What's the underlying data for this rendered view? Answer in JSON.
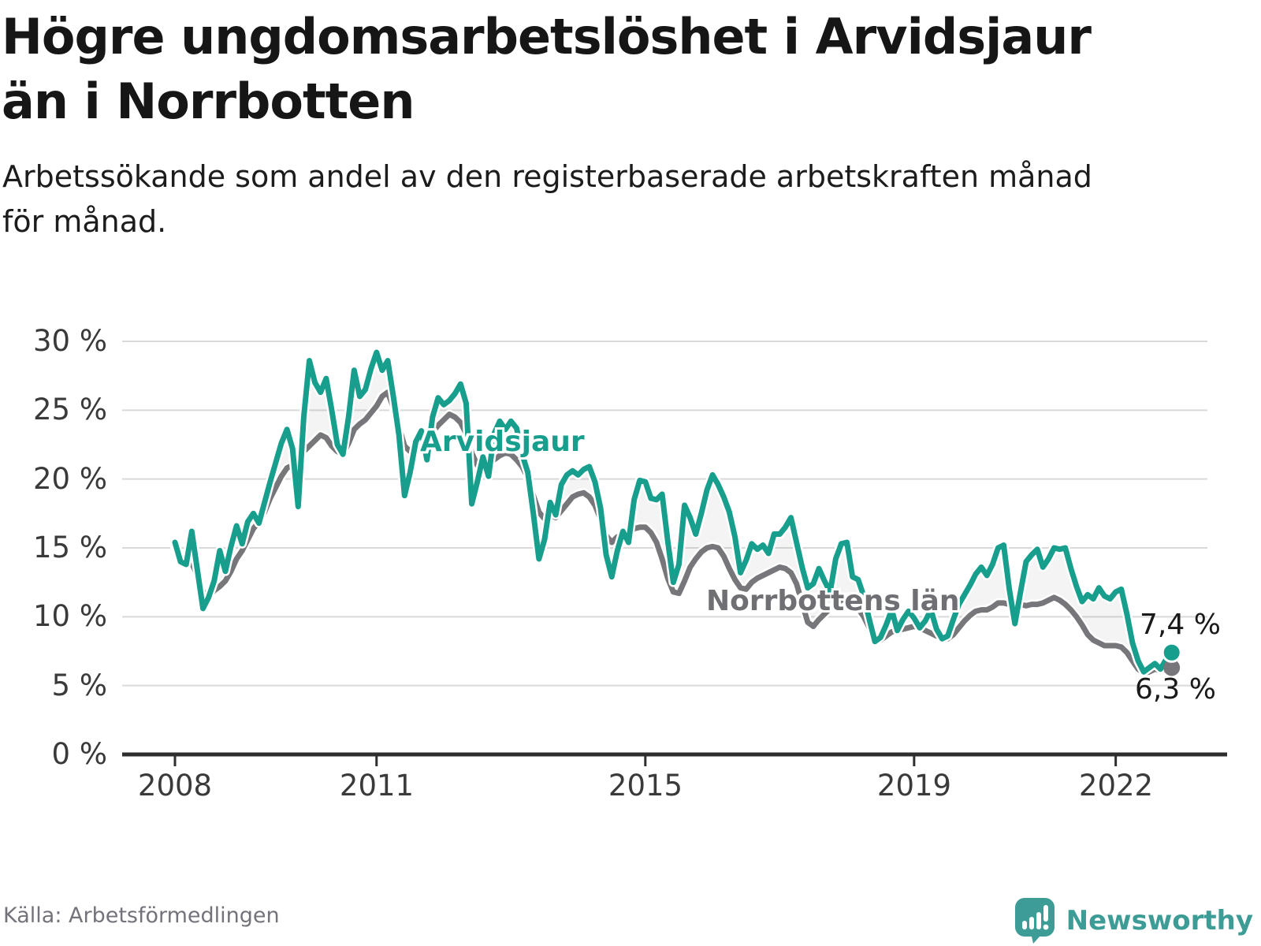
{
  "header": {
    "title_lines": [
      "Högre ungdomsarbetslöshet i Arvidsjaur",
      "än i Norrbotten"
    ],
    "subtitle_lines": [
      "Arbetssökande som andel av den registerbaserade arbetskraften månad",
      "för månad."
    ]
  },
  "footer": {
    "source": "Källa: Arbetsförmedlingen",
    "logo_text": "Newsworthy",
    "logo_color": "#3d9c95"
  },
  "chart_data": {
    "type": "line",
    "title": "Högre ungdomsarbetslöshet i Arvidsjaur än i Norrbotten",
    "subtitle": "Arbetssökande som andel av den registerbaserade arbetskraften månad för månad.",
    "unit": "%",
    "frequency": "monthly",
    "x_range": [
      "2008-01",
      "2022-11"
    ],
    "ylim": [
      0,
      30
    ],
    "grid": "horizontal",
    "legend_position": "inline-labels",
    "ytick_labels": [
      "30 %",
      "25 %",
      "20 %",
      "15 %",
      "10 %",
      "5 %",
      "0 %"
    ],
    "ytick_values": [
      30,
      25,
      20,
      15,
      10,
      5,
      0
    ],
    "xtick_labels": [
      "2008",
      "2011",
      "2015",
      "2019",
      "2022"
    ],
    "colors": {
      "arvidsjaur": "#179e8d",
      "norrbotten": "#77767b",
      "fill_between": "rgba(120,120,120,0.08)",
      "gridline": "#d9d9d9",
      "axis": "#2e2e2e"
    },
    "series": [
      {
        "name": "Arvidsjaur",
        "color": "#179e8d",
        "end_label": "7,4 %",
        "end_value": 7.4,
        "values": [
          15.4,
          14.0,
          13.8,
          16.2,
          13.4,
          10.6,
          11.4,
          12.6,
          14.8,
          13.3,
          15.1,
          16.6,
          15.3,
          16.9,
          17.5,
          16.8,
          18.3,
          19.8,
          21.2,
          22.6,
          23.6,
          22.2,
          18.0,
          24.5,
          28.6,
          27.0,
          26.3,
          27.3,
          25.0,
          22.5,
          21.8,
          24.5,
          27.9,
          26.0,
          26.5,
          28.0,
          29.2,
          27.9,
          28.6,
          26.0,
          23.2,
          18.8,
          20.5,
          22.7,
          23.5,
          21.4,
          24.5,
          25.9,
          25.4,
          25.7,
          26.2,
          26.9,
          25.5,
          18.2,
          19.8,
          21.6,
          20.2,
          23.3,
          24.2,
          23.6,
          24.2,
          23.7,
          21.8,
          20.5,
          17.5,
          14.2,
          15.6,
          18.3,
          17.4,
          19.6,
          20.3,
          20.6,
          20.3,
          20.7,
          20.9,
          19.8,
          17.9,
          14.5,
          12.9,
          14.8,
          16.2,
          15.4,
          18.5,
          19.9,
          19.8,
          18.6,
          18.5,
          18.9,
          15.5,
          12.5,
          13.8,
          18.1,
          17.2,
          16.0,
          17.5,
          19.2,
          20.3,
          19.6,
          18.7,
          17.6,
          15.8,
          13.2,
          14.1,
          15.3,
          14.9,
          15.2,
          14.6,
          16.0,
          16.0,
          16.5,
          17.2,
          15.4,
          13.6,
          12.1,
          12.4,
          13.5,
          12.6,
          11.8,
          14.2,
          15.3,
          15.4,
          12.9,
          12.7,
          11.5,
          9.8,
          8.2,
          8.5,
          9.4,
          10.5,
          9.0,
          9.8,
          10.4,
          9.9,
          9.2,
          9.7,
          10.5,
          9.1,
          8.4,
          8.6,
          9.8,
          10.9,
          11.6,
          12.3,
          13.1,
          13.6,
          13.0,
          13.8,
          15.0,
          15.2,
          12.0,
          9.5,
          11.8,
          14.0,
          14.5,
          14.9,
          13.6,
          14.2,
          15.0,
          14.9,
          15.0,
          13.5,
          12.2,
          11.1,
          11.6,
          11.3,
          12.1,
          11.5,
          11.3,
          11.8,
          12.0,
          10.2,
          8.1,
          6.8,
          6.0,
          6.3,
          6.6,
          6.2,
          6.9,
          7.4
        ]
      },
      {
        "name": "Norrbottens län",
        "color": "#77767b",
        "end_label": "6,3 %",
        "end_value": 6.3,
        "values": [
          15.0,
          14.4,
          13.7,
          13.9,
          13.0,
          11.8,
          11.4,
          11.9,
          12.2,
          12.6,
          13.3,
          14.2,
          14.8,
          15.6,
          16.4,
          16.9,
          17.6,
          18.6,
          19.4,
          20.2,
          20.8,
          21.0,
          21.4,
          22.0,
          22.4,
          22.8,
          23.2,
          23.0,
          22.4,
          22.0,
          21.8,
          22.6,
          23.6,
          24.0,
          24.3,
          24.8,
          25.3,
          26.0,
          26.3,
          25.2,
          23.8,
          22.4,
          22.0,
          22.6,
          23.2,
          22.8,
          23.4,
          23.9,
          24.3,
          24.7,
          24.5,
          24.1,
          23.3,
          21.9,
          21.0,
          21.4,
          21.1,
          21.4,
          21.7,
          21.9,
          21.8,
          21.4,
          20.9,
          20.1,
          18.8,
          17.6,
          17.1,
          17.4,
          17.2,
          17.7,
          18.2,
          18.7,
          18.9,
          19.0,
          18.7,
          18.1,
          17.1,
          15.9,
          15.4,
          15.8,
          15.6,
          16.0,
          16.4,
          16.5,
          16.5,
          16.1,
          15.4,
          14.2,
          12.8,
          11.8,
          11.7,
          12.6,
          13.6,
          14.2,
          14.7,
          15.0,
          15.1,
          15.0,
          14.4,
          13.5,
          12.7,
          12.1,
          12.0,
          12.5,
          12.8,
          13.0,
          13.2,
          13.4,
          13.6,
          13.5,
          13.2,
          12.4,
          11.0,
          9.6,
          9.3,
          9.8,
          10.2,
          10.6,
          10.9,
          11.2,
          11.3,
          11.0,
          10.6,
          10.0,
          9.2,
          8.5,
          8.3,
          8.6,
          8.9,
          9.0,
          9.1,
          9.2,
          9.3,
          9.2,
          9.0,
          8.8,
          8.6,
          8.5,
          8.4,
          8.7,
          9.2,
          9.7,
          10.1,
          10.4,
          10.5,
          10.5,
          10.7,
          11.0,
          11.0,
          10.9,
          10.8,
          10.9,
          10.8,
          10.9,
          10.9,
          11.0,
          11.2,
          11.4,
          11.2,
          10.9,
          10.5,
          10.0,
          9.4,
          8.7,
          8.3,
          8.1,
          7.9,
          7.9,
          7.9,
          7.8,
          7.4,
          6.8,
          6.2,
          5.9,
          6.0,
          6.2,
          6.1,
          6.2,
          6.3
        ]
      }
    ]
  }
}
